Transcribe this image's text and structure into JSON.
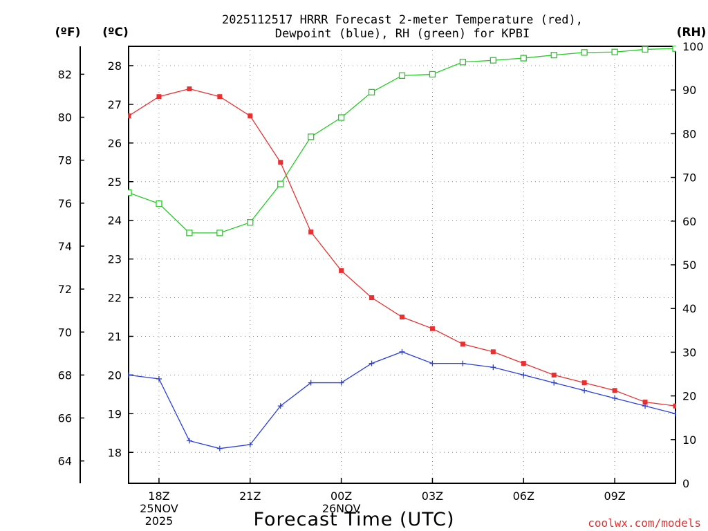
{
  "chart_data": {
    "type": "line",
    "title_line1": "2025112517 HRRR Forecast 2-meter Temperature (red),",
    "title_line2": "Dewpoint (blue), RH (green) for KPBI",
    "xlabel": "Forecast Time (UTC)",
    "credit": "coolwx.com/models",
    "axes": {
      "fahrenheit": {
        "label": "(ºF)",
        "ticks": [
          64,
          66,
          68,
          70,
          72,
          74,
          76,
          78,
          80,
          82
        ]
      },
      "celsius": {
        "label": "(ºC)",
        "ylim": [
          17.2,
          28.5
        ],
        "ticks": [
          18,
          19,
          20,
          21,
          22,
          23,
          24,
          25,
          26,
          27,
          28
        ]
      },
      "rh": {
        "label": "(RH)",
        "ylim": [
          0,
          100
        ],
        "ticks": [
          0,
          10,
          20,
          30,
          40,
          50,
          60,
          70,
          80,
          90,
          100
        ]
      }
    },
    "x": [
      17,
      18,
      19,
      20,
      21,
      22,
      23,
      24,
      25,
      26,
      27,
      28,
      29,
      30,
      31,
      32,
      33,
      34,
      35
    ],
    "x_range": [
      17,
      35
    ],
    "x_ticks": [
      {
        "x": 18,
        "label": "18Z",
        "sub1": "25NOV",
        "sub2": "2025"
      },
      {
        "x": 21,
        "label": "21Z",
        "sub1": "",
        "sub2": ""
      },
      {
        "x": 24,
        "label": "00Z",
        "sub1": "26NOV",
        "sub2": ""
      },
      {
        "x": 27,
        "label": "03Z",
        "sub1": "",
        "sub2": ""
      },
      {
        "x": 30,
        "label": "06Z",
        "sub1": "",
        "sub2": ""
      },
      {
        "x": 33,
        "label": "09Z",
        "sub1": "",
        "sub2": ""
      }
    ],
    "series": [
      {
        "name": "2-meter Temperature",
        "color": "#e83030",
        "axis": "celsius",
        "marker": "filled-square",
        "values": [
          26.7,
          27.2,
          27.4,
          27.2,
          26.7,
          25.5,
          23.7,
          22.7,
          22.0,
          21.5,
          21.2,
          20.8,
          20.6,
          20.3,
          20.0,
          19.8,
          19.6,
          19.3,
          19.2
        ]
      },
      {
        "name": "Dewpoint",
        "color": "#2a3ee0",
        "axis": "celsius",
        "marker": "plus",
        "values": [
          20.0,
          19.9,
          18.3,
          18.1,
          18.2,
          19.2,
          19.8,
          19.8,
          20.3,
          20.6,
          20.3,
          20.3,
          20.2,
          20.0,
          19.8,
          19.6,
          19.4,
          19.2,
          19.0
        ]
      },
      {
        "name": "RH",
        "color": "#22cc22",
        "axis": "rh",
        "marker": "open-square",
        "values": [
          66.5,
          64.0,
          57.3,
          57.3,
          59.7,
          68.5,
          79.3,
          83.7,
          89.5,
          93.3,
          93.6,
          96.4,
          96.8,
          97.3,
          98.0,
          98.6,
          98.7,
          99.3,
          99.5
        ]
      }
    ]
  }
}
